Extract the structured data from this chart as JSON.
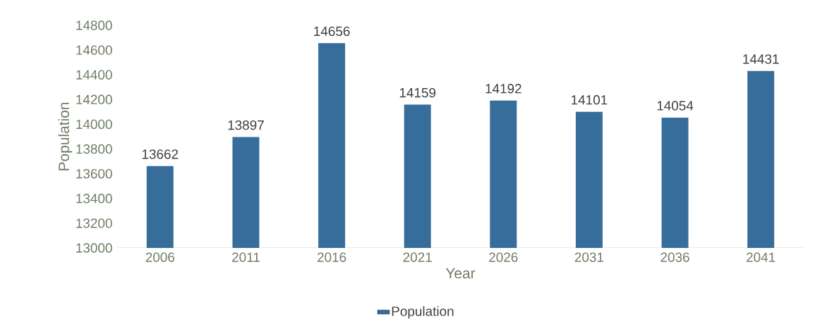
{
  "chart_data": {
    "type": "bar",
    "xlabel": "Year",
    "ylabel": "Population",
    "categories": [
      "2006",
      "2011",
      "2016",
      "2021",
      "2026",
      "2031",
      "2036",
      "2041"
    ],
    "series": [
      {
        "name": "Population",
        "color": "#376d9b",
        "values": [
          13662,
          13897,
          14656,
          14159,
          14192,
          14101,
          14054,
          14431
        ]
      }
    ],
    "ylim": [
      13000,
      14800
    ],
    "yticks": [
      13000,
      13200,
      13400,
      13600,
      13800,
      14000,
      14200,
      14400,
      14600,
      14800
    ],
    "data_labels": true,
    "grid": false,
    "legend": "bottom"
  }
}
